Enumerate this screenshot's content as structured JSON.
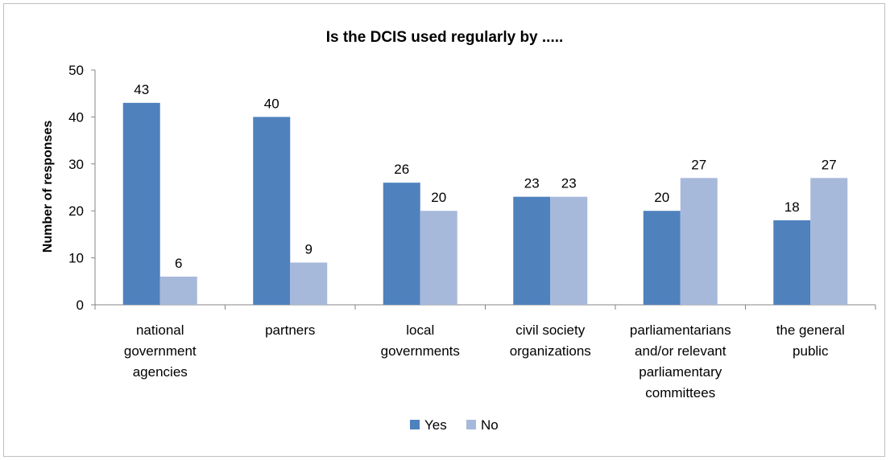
{
  "chart_data": {
    "type": "bar",
    "title": "Is the DCIS used regularly by .....",
    "xlabel": "",
    "ylabel": "Number of responses",
    "ylim": [
      0,
      50
    ],
    "yticks": [
      0,
      10,
      20,
      30,
      40,
      50
    ],
    "grid": false,
    "legend_position": "bottom",
    "categories": [
      [
        "national",
        "government",
        "agencies"
      ],
      [
        "partners"
      ],
      [
        "local",
        "governments"
      ],
      [
        "civil society",
        "organizations"
      ],
      [
        "parliamentarians",
        "and/or relevant",
        "parliamentary",
        "committees"
      ],
      [
        "the general",
        "public"
      ]
    ],
    "series": [
      {
        "name": "Yes",
        "color": "#4f81bd",
        "values": [
          43,
          40,
          26,
          23,
          20,
          18
        ]
      },
      {
        "name": "No",
        "color": "#a7b9da",
        "values": [
          6,
          9,
          20,
          23,
          27,
          27
        ]
      }
    ]
  }
}
